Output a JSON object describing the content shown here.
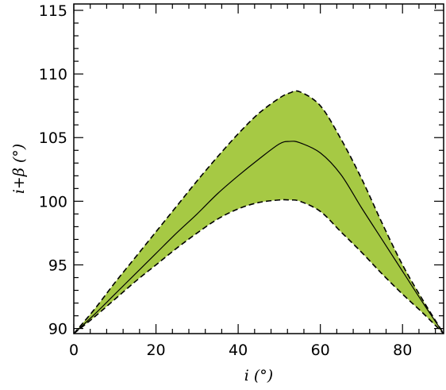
{
  "chart_data": {
    "type": "area",
    "title": "",
    "xlabel": "i (°)",
    "ylabel": "i+β (°)",
    "xlim": [
      0,
      90
    ],
    "ylim": [
      89.6,
      115.5
    ],
    "xticks": [
      0,
      20,
      40,
      60,
      80
    ],
    "yticks": [
      90,
      95,
      100,
      105,
      110,
      115
    ],
    "x_minor_step": 4,
    "y_minor_step": 1,
    "grid": false,
    "colors": {
      "fill": "#a6c944",
      "line": "#000000",
      "axis": "#000000"
    },
    "x": [
      0,
      5,
      10,
      15,
      20,
      25,
      30,
      35,
      40,
      45,
      50,
      52.5,
      55,
      60,
      65,
      70,
      75,
      80,
      85,
      90
    ],
    "series": [
      {
        "role": "center",
        "style": "solid",
        "values": [
          89.6,
          91.1,
          92.7,
          94.3,
          95.9,
          97.5,
          99.0,
          100.6,
          102.0,
          103.3,
          104.5,
          104.7,
          104.6,
          103.8,
          102.1,
          99.5,
          97.0,
          94.5,
          92.0,
          89.6
        ]
      },
      {
        "role": "upper",
        "style": "dashed",
        "values": [
          89.6,
          91.5,
          93.6,
          95.6,
          97.6,
          99.6,
          101.6,
          103.5,
          105.3,
          106.9,
          108.1,
          108.5,
          108.6,
          107.5,
          104.9,
          101.8,
          98.3,
          95.0,
          92.2,
          89.6
        ]
      },
      {
        "role": "lower",
        "style": "dashed",
        "values": [
          89.6,
          90.9,
          92.3,
          93.7,
          95.0,
          96.3,
          97.5,
          98.6,
          99.4,
          99.9,
          100.1,
          100.1,
          100.0,
          99.2,
          97.6,
          96.0,
          94.3,
          92.7,
          91.2,
          89.6
        ]
      }
    ]
  }
}
